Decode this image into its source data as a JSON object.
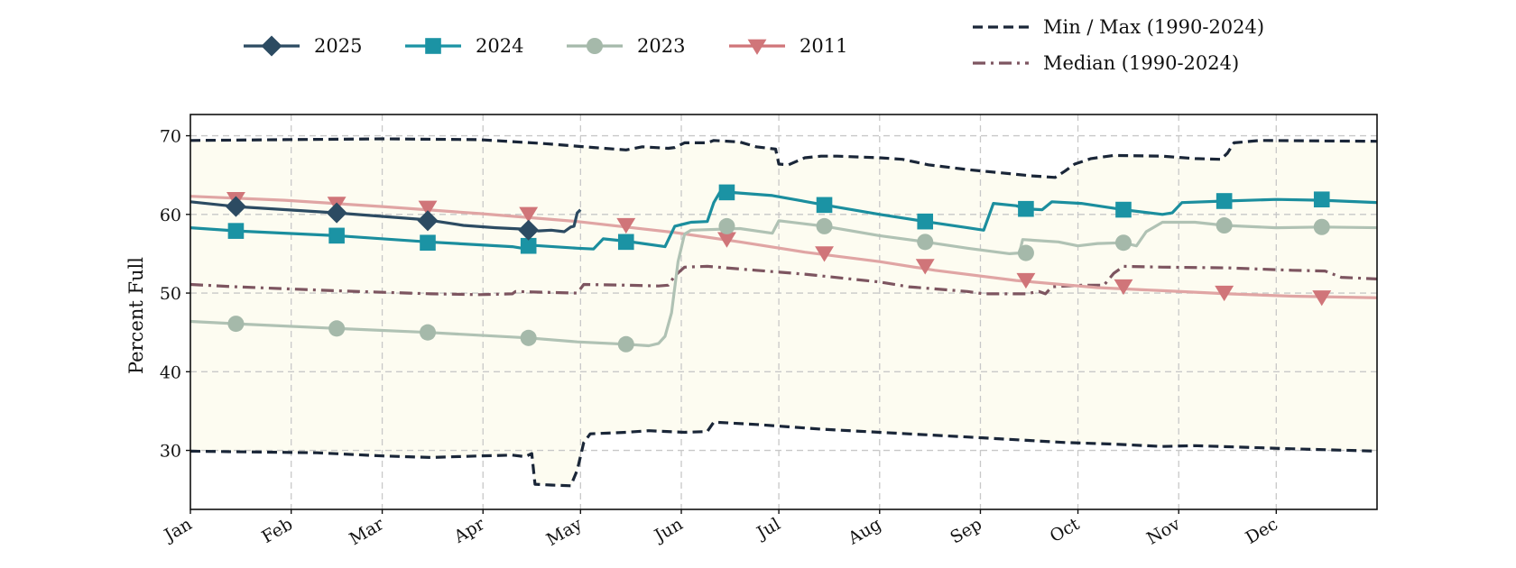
{
  "chart_data": {
    "type": "line",
    "title": "",
    "xlabel": "",
    "ylabel": "Percent Full",
    "ylim": [
      22.5,
      72.7
    ],
    "yticks": [
      30,
      40,
      50,
      60,
      70
    ],
    "x_unit": "day_of_year",
    "xlim": [
      1,
      366
    ],
    "month_ticks": [
      {
        "label": "Jan",
        "day": 1
      },
      {
        "label": "Feb",
        "day": 32
      },
      {
        "label": "Mar",
        "day": 60
      },
      {
        "label": "Apr",
        "day": 91
      },
      {
        "label": "May",
        "day": 121
      },
      {
        "label": "Jun",
        "day": 152
      },
      {
        "label": "Jul",
        "day": 182
      },
      {
        "label": "Aug",
        "day": 213
      },
      {
        "label": "Sep",
        "day": 244
      },
      {
        "label": "Oct",
        "day": 274
      },
      {
        "label": "Nov",
        "day": 305
      },
      {
        "label": "Dec",
        "day": 335
      }
    ],
    "grid": true,
    "band": {
      "name": "Min / Max (1990-2024)",
      "fill": "#fdfcf1"
    },
    "series": [
      {
        "name": "Min / Max (1990-2024)",
        "style": "dashed",
        "color": "#1a2638",
        "marker": "none",
        "segments": [
          [
            [
              1,
              69.4
            ],
            [
              30,
              69.5
            ],
            [
              60,
              69.6
            ],
            [
              90,
              69.5
            ],
            [
              110,
              69.0
            ],
            [
              125,
              68.5
            ],
            [
              135,
              68.2
            ],
            [
              140,
              68.6
            ],
            [
              148,
              68.4
            ],
            [
              150,
              68.5
            ],
            [
              153,
              69.1
            ],
            [
              160,
              69.1
            ],
            [
              162,
              69.4
            ],
            [
              170,
              69.2
            ],
            [
              175,
              68.6
            ],
            [
              181,
              68.3
            ],
            [
              182,
              66.4
            ],
            [
              185,
              66.3
            ],
            [
              190,
              67.2
            ],
            [
              195,
              67.4
            ],
            [
              200,
              67.4
            ],
            [
              213,
              67.2
            ],
            [
              220,
              67.0
            ],
            [
              228,
              66.3
            ],
            [
              240,
              65.7
            ],
            [
              260,
              64.9
            ],
            [
              267,
              64.7
            ],
            [
              270,
              65.5
            ],
            [
              273,
              66.4
            ],
            [
              278,
              67.1
            ],
            [
              285,
              67.5
            ],
            [
              300,
              67.4
            ],
            [
              310,
              67.1
            ],
            [
              318,
              67.0
            ],
            [
              320,
              67.8
            ],
            [
              322,
              69.1
            ],
            [
              330,
              69.4
            ],
            [
              366,
              69.3
            ]
          ],
          [
            [
              1,
              29.9
            ],
            [
              40,
              29.7
            ],
            [
              60,
              29.3
            ],
            [
              75,
              29.1
            ],
            [
              90,
              29.3
            ],
            [
              100,
              29.4
            ],
            [
              104,
              29.2
            ],
            [
              106,
              29.6
            ],
            [
              107,
              25.7
            ],
            [
              112,
              25.6
            ],
            [
              118,
              25.5
            ],
            [
              120,
              27.5
            ],
            [
              122,
              31.0
            ],
            [
              124,
              32.1
            ],
            [
              135,
              32.3
            ],
            [
              142,
              32.5
            ],
            [
              153,
              32.3
            ],
            [
              160,
              32.4
            ],
            [
              162,
              33.6
            ],
            [
              175,
              33.3
            ],
            [
              195,
              32.7
            ],
            [
              213,
              32.3
            ],
            [
              240,
              31.7
            ],
            [
              270,
              31.0
            ],
            [
              285,
              30.8
            ],
            [
              300,
              30.5
            ],
            [
              310,
              30.6
            ],
            [
              340,
              30.2
            ],
            [
              366,
              29.9
            ]
          ]
        ]
      },
      {
        "name": "Median (1990-2024)",
        "style": "dashdot",
        "color": "#7d5560",
        "marker": "none",
        "points": [
          [
            1,
            51.1
          ],
          [
            15,
            50.8
          ],
          [
            45,
            50.3
          ],
          [
            75,
            49.9
          ],
          [
            90,
            49.8
          ],
          [
            100,
            49.9
          ],
          [
            101,
            50.2
          ],
          [
            110,
            50.1
          ],
          [
            120,
            50.0
          ],
          [
            122,
            51.1
          ],
          [
            135,
            51.0
          ],
          [
            145,
            50.9
          ],
          [
            148,
            51.0
          ],
          [
            150,
            52.2
          ],
          [
            153,
            53.3
          ],
          [
            160,
            53.4
          ],
          [
            175,
            52.9
          ],
          [
            190,
            52.4
          ],
          [
            213,
            51.4
          ],
          [
            222,
            50.8
          ],
          [
            240,
            50.2
          ],
          [
            245,
            49.9
          ],
          [
            258,
            49.9
          ],
          [
            262,
            50.2
          ],
          [
            264,
            49.9
          ],
          [
            266,
            50.8
          ],
          [
            275,
            51.0
          ],
          [
            282,
            51.0
          ],
          [
            285,
            52.5
          ],
          [
            288,
            53.4
          ],
          [
            300,
            53.3
          ],
          [
            320,
            53.2
          ],
          [
            340,
            52.9
          ],
          [
            350,
            52.8
          ],
          [
            355,
            52.0
          ],
          [
            366,
            51.8
          ]
        ]
      },
      {
        "name": "2011",
        "style": "solid",
        "color": "#e0a5a4",
        "marker": "triangle-down",
        "marker_color": "#d07579",
        "points": [
          [
            1,
            62.3
          ],
          [
            30,
            61.8
          ],
          [
            60,
            61.0
          ],
          [
            90,
            60.1
          ],
          [
            120,
            59.1
          ],
          [
            150,
            57.7
          ],
          [
            170,
            56.5
          ],
          [
            190,
            55.2
          ],
          [
            213,
            54.0
          ],
          [
            230,
            52.9
          ],
          [
            255,
            51.6
          ],
          [
            280,
            50.7
          ],
          [
            300,
            50.3
          ],
          [
            320,
            49.9
          ],
          [
            340,
            49.6
          ],
          [
            366,
            49.4
          ]
        ],
        "markers": [
          [
            15,
            62.0
          ],
          [
            46,
            61.4
          ],
          [
            74,
            60.9
          ],
          [
            105,
            60.1
          ],
          [
            135,
            58.7
          ],
          [
            166,
            56.9
          ],
          [
            196,
            55.1
          ],
          [
            227,
            53.5
          ],
          [
            258,
            51.7
          ],
          [
            288,
            50.9
          ],
          [
            319,
            50.1
          ],
          [
            349,
            49.5
          ]
        ]
      },
      {
        "name": "2023",
        "style": "solid",
        "color": "#b0c2b4",
        "marker": "circle",
        "marker_color": "#a5b9aa",
        "points": [
          [
            1,
            46.4
          ],
          [
            15,
            46.1
          ],
          [
            46,
            45.5
          ],
          [
            74,
            45.0
          ],
          [
            105,
            44.3
          ],
          [
            120,
            43.8
          ],
          [
            135,
            43.5
          ],
          [
            142,
            43.3
          ],
          [
            145,
            43.6
          ],
          [
            147,
            44.5
          ],
          [
            149,
            47.5
          ],
          [
            151,
            54.0
          ],
          [
            153,
            57.5
          ],
          [
            155,
            58.0
          ],
          [
            170,
            58.2
          ],
          [
            180,
            57.6
          ],
          [
            182,
            59.2
          ],
          [
            190,
            58.8
          ],
          [
            196,
            58.5
          ],
          [
            213,
            57.3
          ],
          [
            227,
            56.5
          ],
          [
            240,
            55.7
          ],
          [
            253,
            55.0
          ],
          [
            256,
            55.1
          ],
          [
            257,
            56.8
          ],
          [
            268,
            56.5
          ],
          [
            274,
            56.0
          ],
          [
            280,
            56.3
          ],
          [
            288,
            56.4
          ],
          [
            292,
            56.0
          ],
          [
            295,
            57.8
          ],
          [
            300,
            59.0
          ],
          [
            310,
            59.0
          ],
          [
            319,
            58.6
          ],
          [
            335,
            58.3
          ],
          [
            349,
            58.4
          ],
          [
            366,
            58.3
          ]
        ],
        "markers": [
          [
            15,
            46.1
          ],
          [
            46,
            45.5
          ],
          [
            74,
            45.0
          ],
          [
            105,
            44.3
          ],
          [
            135,
            43.5
          ],
          [
            166,
            58.5
          ],
          [
            196,
            58.5
          ],
          [
            227,
            56.5
          ],
          [
            258,
            55.1
          ],
          [
            288,
            56.4
          ],
          [
            319,
            58.6
          ],
          [
            349,
            58.4
          ]
        ]
      },
      {
        "name": "2024",
        "style": "solid",
        "color": "#1b8e9e",
        "marker": "square",
        "marker_color": "#1b93a4",
        "points": [
          [
            1,
            58.3
          ],
          [
            15,
            57.9
          ],
          [
            46,
            57.3
          ],
          [
            74,
            56.5
          ],
          [
            100,
            55.9
          ],
          [
            103,
            55.7
          ],
          [
            105,
            56.1
          ],
          [
            120,
            55.7
          ],
          [
            125,
            55.6
          ],
          [
            128,
            56.9
          ],
          [
            135,
            56.6
          ],
          [
            147,
            55.9
          ],
          [
            150,
            58.5
          ],
          [
            155,
            59.0
          ],
          [
            160,
            59.1
          ],
          [
            162,
            61.5
          ],
          [
            164,
            62.9
          ],
          [
            180,
            62.4
          ],
          [
            196,
            61.2
          ],
          [
            213,
            60.0
          ],
          [
            227,
            59.1
          ],
          [
            240,
            58.3
          ],
          [
            245,
            58.0
          ],
          [
            248,
            61.4
          ],
          [
            255,
            61.1
          ],
          [
            258,
            60.7
          ],
          [
            263,
            60.6
          ],
          [
            266,
            61.6
          ],
          [
            275,
            61.4
          ],
          [
            288,
            60.6
          ],
          [
            300,
            60.0
          ],
          [
            303,
            60.2
          ],
          [
            306,
            61.5
          ],
          [
            319,
            61.7
          ],
          [
            335,
            61.9
          ],
          [
            349,
            61.8
          ],
          [
            366,
            61.5
          ]
        ],
        "markers": [
          [
            15,
            57.9
          ],
          [
            46,
            57.3
          ],
          [
            74,
            56.4
          ],
          [
            105,
            56.0
          ],
          [
            135,
            56.5
          ],
          [
            166,
            62.8
          ],
          [
            196,
            61.2
          ],
          [
            227,
            59.1
          ],
          [
            258,
            60.7
          ],
          [
            288,
            60.6
          ],
          [
            319,
            61.7
          ],
          [
            349,
            61.9
          ]
        ]
      },
      {
        "name": "2025",
        "style": "solid",
        "color": "#2c4b62",
        "marker": "diamond",
        "marker_color": "#2c4b62",
        "points": [
          [
            1,
            61.6
          ],
          [
            15,
            61.0
          ],
          [
            46,
            60.2
          ],
          [
            74,
            59.3
          ],
          [
            85,
            58.6
          ],
          [
            95,
            58.3
          ],
          [
            105,
            58.1
          ],
          [
            108,
            57.9
          ],
          [
            112,
            58.0
          ],
          [
            116,
            57.8
          ],
          [
            118,
            58.4
          ],
          [
            119,
            58.5
          ],
          [
            120,
            60.2
          ],
          [
            121,
            60.6
          ]
        ],
        "markers": [
          [
            15,
            61.0
          ],
          [
            46,
            60.2
          ],
          [
            74,
            59.2
          ],
          [
            105,
            58.0
          ]
        ]
      }
    ],
    "legend": {
      "placement": "top",
      "entries": [
        {
          "label": "2025",
          "color": "#2c4b62",
          "marker": "diamond",
          "style": "solid"
        },
        {
          "label": "2024",
          "color": "#1b93a4",
          "marker": "square",
          "style": "solid"
        },
        {
          "label": "2023",
          "color": "#a5b9aa",
          "marker": "circle",
          "style": "solid"
        },
        {
          "label": "2011",
          "color": "#d07579",
          "marker": "triangle-down",
          "style": "solid"
        },
        {
          "label": "Min / Max (1990-2024)",
          "color": "#1a2638",
          "marker": "none",
          "style": "dashed"
        },
        {
          "label": "Median (1990-2024)",
          "color": "#7d5560",
          "marker": "none",
          "style": "dashdot"
        }
      ]
    }
  }
}
